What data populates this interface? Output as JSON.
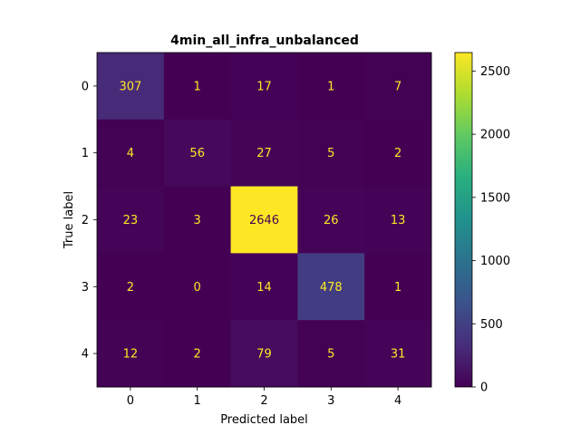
{
  "chart_data": {
    "type": "heatmap",
    "title": "4min_all_infra_unbalanced",
    "xlabel": "Predicted label",
    "ylabel": "True label",
    "x_categories": [
      "0",
      "1",
      "2",
      "3",
      "4"
    ],
    "y_categories": [
      "0",
      "1",
      "2",
      "3",
      "4"
    ],
    "matrix": [
      [
        307,
        1,
        17,
        1,
        7
      ],
      [
        4,
        56,
        27,
        5,
        2
      ],
      [
        23,
        3,
        2646,
        26,
        13
      ],
      [
        2,
        0,
        14,
        478,
        1
      ],
      [
        12,
        2,
        79,
        5,
        31
      ]
    ],
    "colormap": "viridis",
    "colorbar": {
      "min": 0,
      "max": 2646,
      "ticks": [
        0,
        500,
        1000,
        1500,
        2000,
        2500
      ]
    },
    "colors": {
      "text_dark_cell": "#fde725",
      "text_light_cell": "#440154"
    }
  }
}
